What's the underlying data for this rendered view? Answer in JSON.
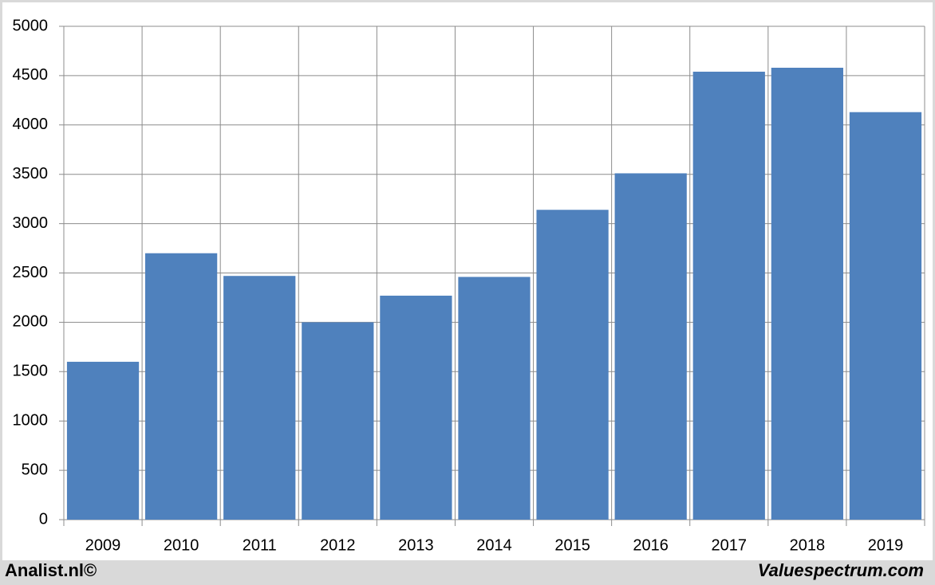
{
  "chart_data": {
    "type": "bar",
    "categories": [
      "2009",
      "2010",
      "2011",
      "2012",
      "2013",
      "2014",
      "2015",
      "2016",
      "2017",
      "2018",
      "2019"
    ],
    "values": [
      1600,
      2700,
      2470,
      2000,
      2270,
      2460,
      3140,
      3510,
      4540,
      4580,
      4130
    ],
    "color": "#4f81bd",
    "ylim": [
      0,
      5000
    ],
    "yticks": [
      0,
      500,
      1000,
      1500,
      2000,
      2500,
      3000,
      3500,
      4000,
      4500,
      5000
    ],
    "grid": true
  },
  "footer": {
    "left": "Analist.nl©",
    "right": "Valuespectrum.com"
  }
}
